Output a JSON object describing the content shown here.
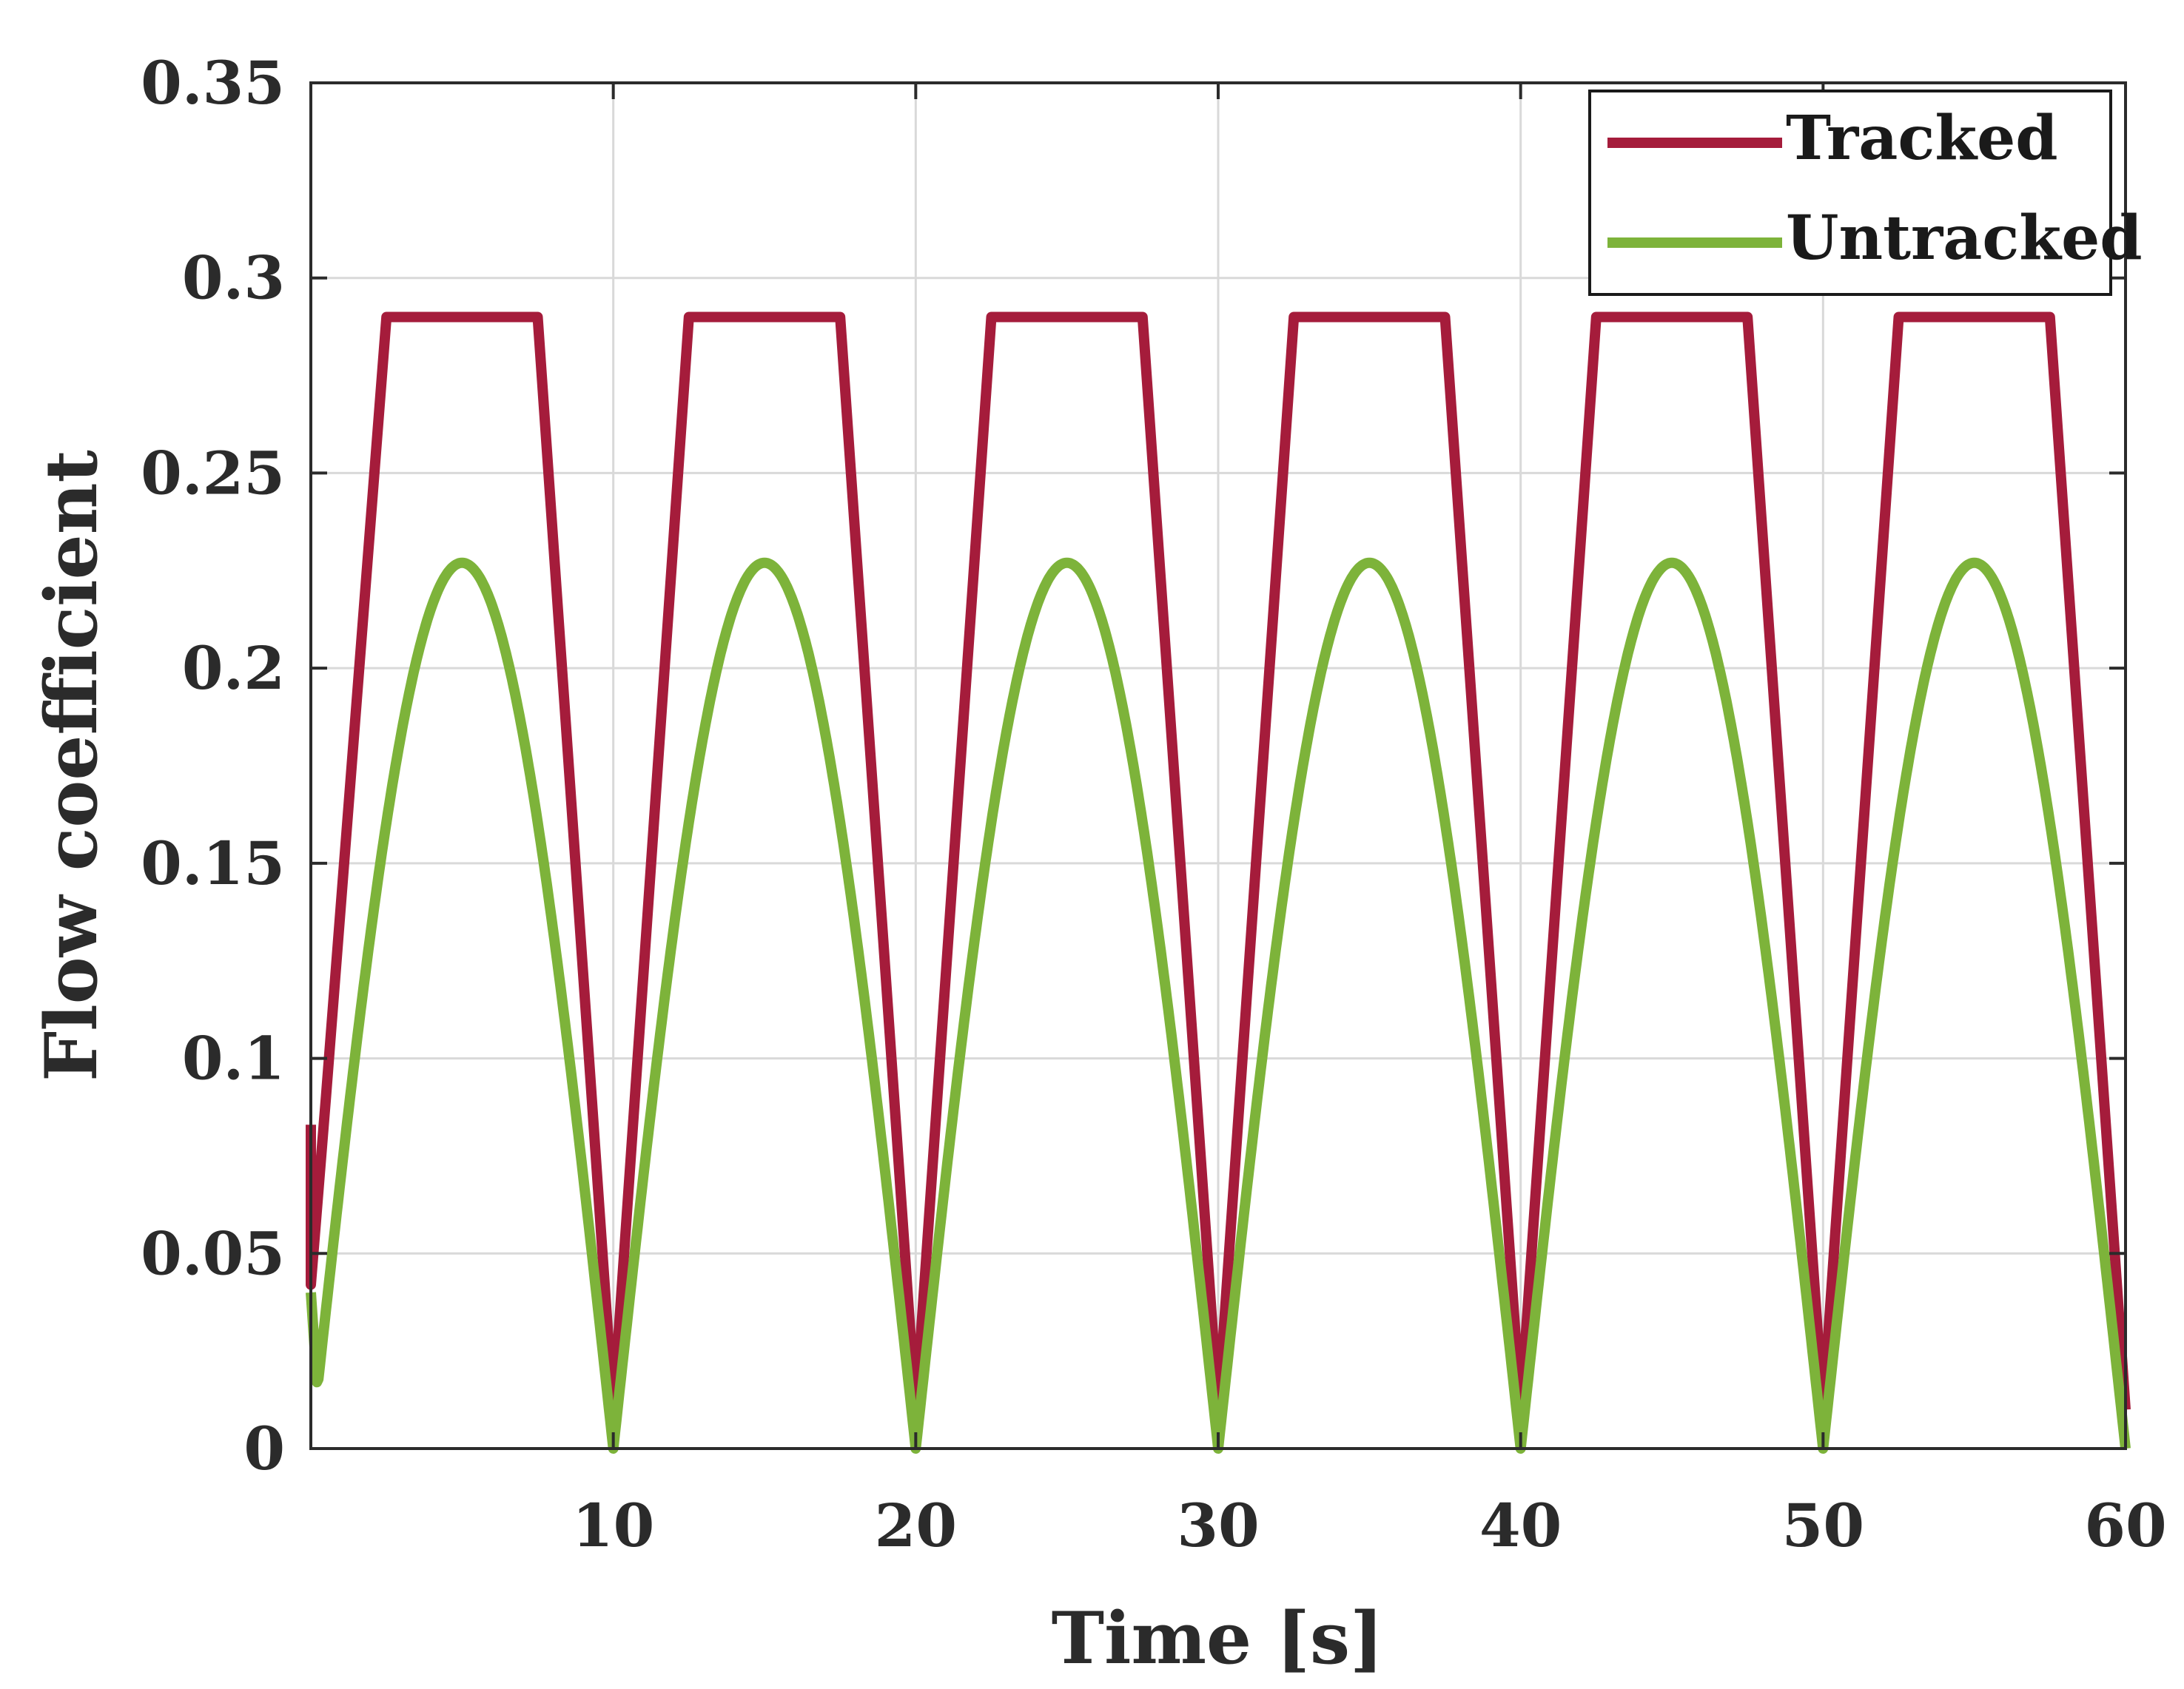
{
  "chart_data": {
    "type": "line",
    "title": "",
    "xlabel": "Time [s]",
    "ylabel": "Flow coefficient",
    "xlim": [
      0,
      60
    ],
    "ylim": [
      0,
      0.35
    ],
    "grid": true,
    "legend_position": "top-right",
    "xticks": [
      10,
      20,
      30,
      40,
      50,
      60
    ],
    "xtick_labels": [
      "10",
      "20",
      "30",
      "40",
      "50",
      "60"
    ],
    "yticks": [
      0,
      0.05,
      0.1,
      0.15,
      0.2,
      0.25,
      0.3,
      0.35
    ],
    "ytick_labels": [
      "0",
      "0.05",
      "0.1",
      "0.15",
      "0.2",
      "0.25",
      "0.3",
      "0.35"
    ],
    "series": [
      {
        "name": "Tracked",
        "color": "#a51c3b",
        "x": [
          0,
          0,
          0.5,
          2.5,
          7.5,
          10,
          12.5,
          17.5,
          20,
          22.5,
          27.5,
          30,
          32.5,
          37.5,
          40,
          42.5,
          47.5,
          50,
          52.5,
          57.5,
          60
        ],
        "y": [
          0.083,
          0.042,
          0.09,
          0.29,
          0.29,
          0.01,
          0.29,
          0.29,
          0.01,
          0.29,
          0.29,
          0.01,
          0.29,
          0.29,
          0.01,
          0.29,
          0.29,
          0.01,
          0.29,
          0.29,
          0.01
        ]
      },
      {
        "name": "Untracked",
        "color": "#7db33a",
        "period": 10,
        "peak": 0.227,
        "x": [
          0,
          0.2,
          1,
          2,
          3,
          4,
          5,
          6,
          7,
          8,
          9,
          10,
          11,
          12,
          13,
          14,
          15,
          16,
          17,
          18,
          19,
          20,
          21,
          22,
          23,
          24,
          25,
          26,
          27,
          28,
          29,
          30,
          31,
          32,
          33,
          34,
          35,
          36,
          37,
          38,
          39,
          40,
          41,
          42,
          43,
          44,
          45,
          46,
          47,
          48,
          49,
          50,
          51,
          52,
          53,
          54,
          55,
          56,
          57,
          58,
          59,
          60
        ],
        "y": [
          0.04,
          0.017,
          0.07,
          0.133,
          0.184,
          0.216,
          0.227,
          0.216,
          0.184,
          0.133,
          0.07,
          0,
          0.07,
          0.133,
          0.184,
          0.216,
          0.227,
          0.216,
          0.184,
          0.133,
          0.07,
          0,
          0.07,
          0.133,
          0.184,
          0.216,
          0.227,
          0.216,
          0.184,
          0.133,
          0.07,
          0,
          0.07,
          0.133,
          0.184,
          0.216,
          0.227,
          0.216,
          0.184,
          0.133,
          0.07,
          0,
          0.07,
          0.133,
          0.184,
          0.216,
          0.227,
          0.216,
          0.184,
          0.133,
          0.07,
          0,
          0.07,
          0.133,
          0.184,
          0.216,
          0.227,
          0.216,
          0.184,
          0.133,
          0.07,
          0
        ]
      }
    ]
  }
}
